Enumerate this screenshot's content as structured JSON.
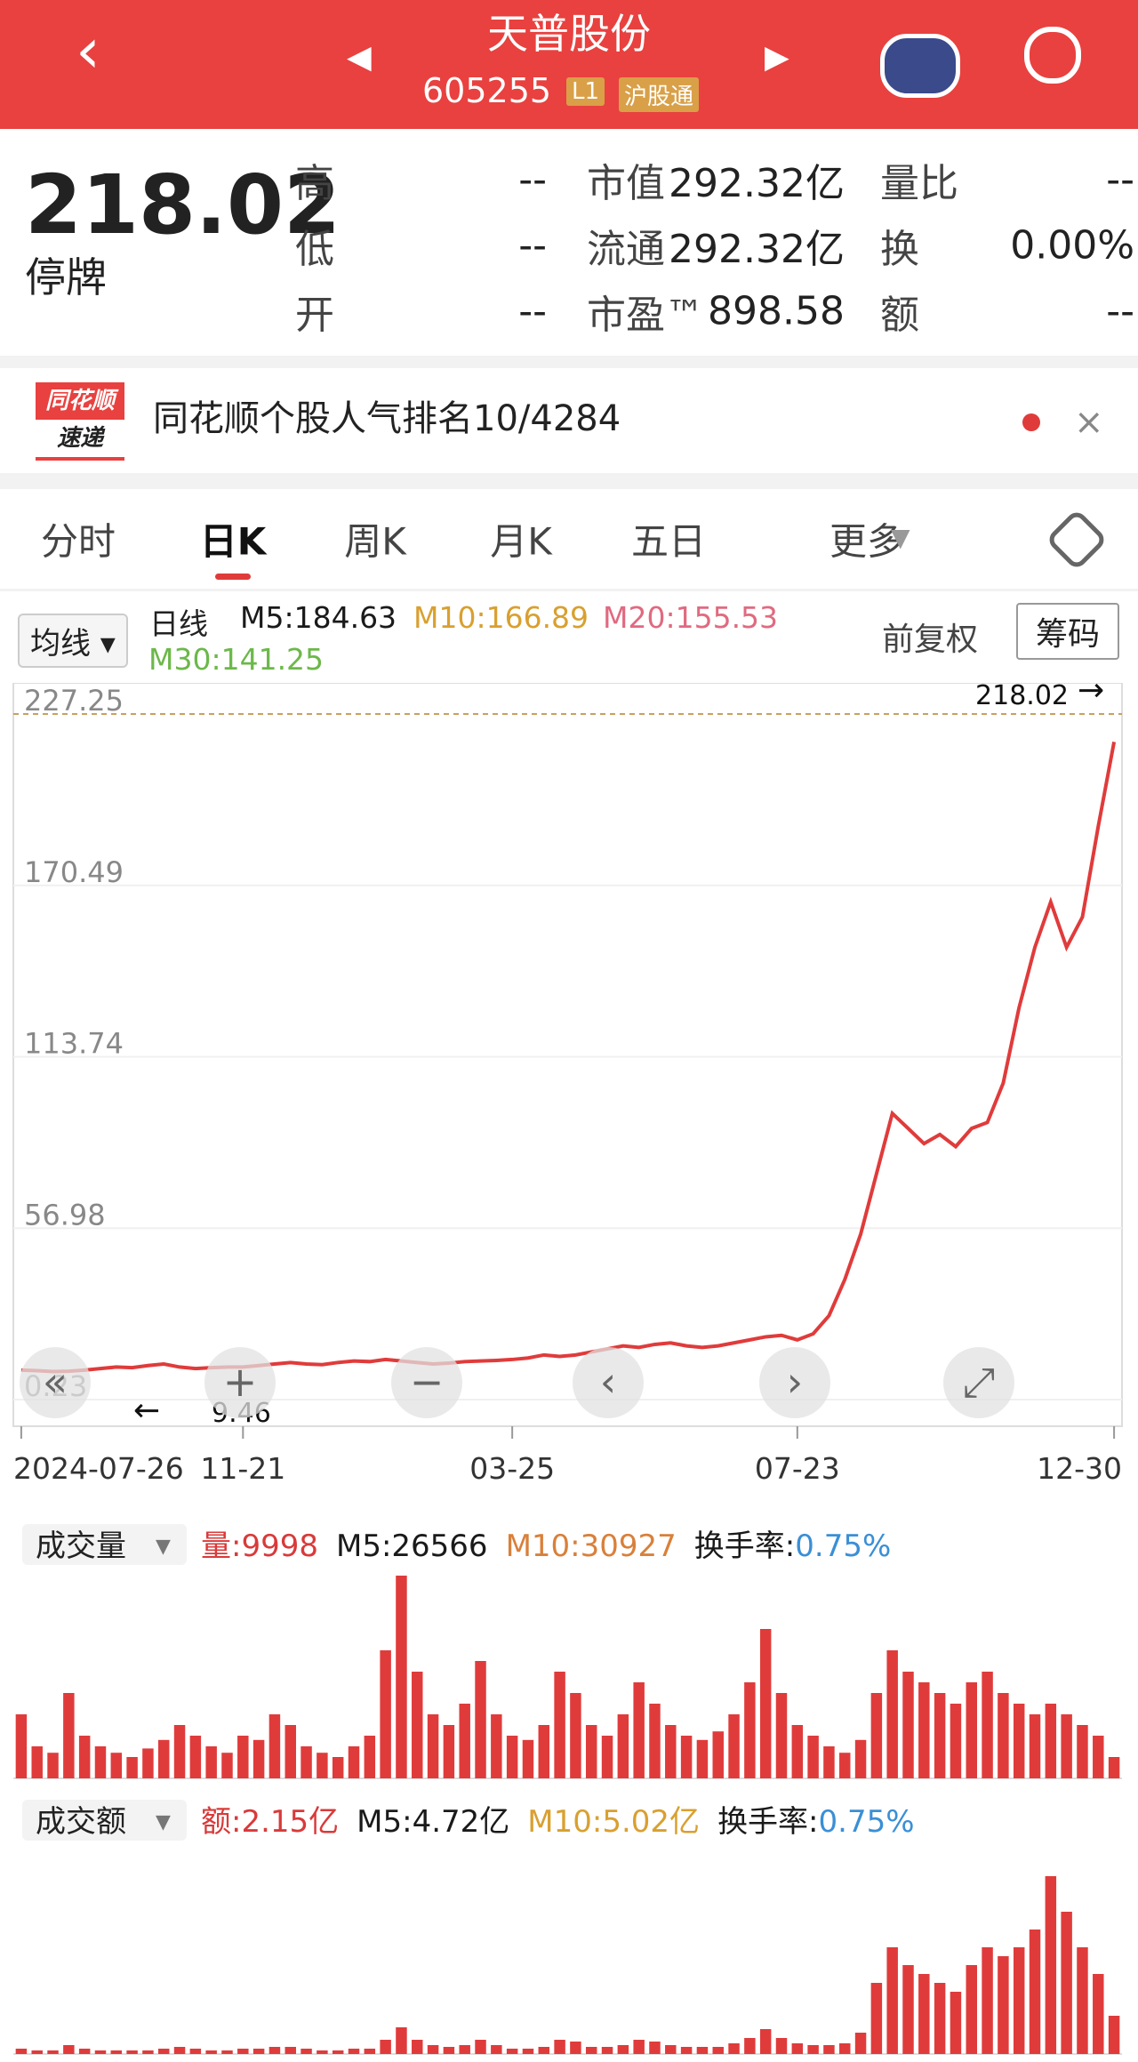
{
  "header": {
    "title": "天普股份",
    "code": "605255",
    "badge_level": "L1",
    "badge_connect": "沪股通"
  },
  "quote": {
    "price": 218.02,
    "status": "停牌",
    "rows": [
      [
        {
          "label": "高",
          "value": "--"
        },
        {
          "label": "市值",
          "value": "292.32亿"
        },
        {
          "label": "量比",
          "value": "--"
        }
      ],
      [
        {
          "label": "低",
          "value": "--"
        },
        {
          "label": "流通",
          "value": "292.32亿"
        },
        {
          "label": "换",
          "value": "0.00%"
        }
      ],
      [
        {
          "label": "开",
          "value": "--"
        },
        {
          "label": "市盈™",
          "value": "898.58"
        },
        {
          "label": "额",
          "value": "--"
        }
      ]
    ]
  },
  "banner": {
    "logo_top": "同花顺",
    "logo_bottom": "速递",
    "text": "同花顺个股人气排名10/4284"
  },
  "tabs": {
    "items": [
      "分时",
      "日K",
      "周K",
      "月K",
      "五日",
      "更多"
    ],
    "selected": 1
  },
  "ma_bar": {
    "button": "均线",
    "period": "日线",
    "items": [
      {
        "text": "M5:184.63",
        "color": "#1a1a1a"
      },
      {
        "text": "M10:166.89",
        "color": "#d9a030"
      },
      {
        "text": "M20:155.53",
        "color": "#e06a80"
      },
      {
        "text": "M30:141.25",
        "color": "#6cb84a"
      }
    ],
    "adjust": "前复权",
    "chips": "筹码"
  },
  "chart_data": [
    {
      "type": "line",
      "color": "#e03b3b",
      "categories": [
        "2024-07-26",
        null,
        null,
        null,
        null,
        null,
        null,
        null,
        null,
        null,
        null,
        null,
        null,
        null,
        "11-21",
        null,
        null,
        null,
        null,
        null,
        null,
        null,
        null,
        null,
        null,
        null,
        null,
        null,
        null,
        null,
        null,
        "03-25",
        null,
        null,
        null,
        null,
        null,
        null,
        null,
        null,
        null,
        null,
        null,
        null,
        null,
        null,
        null,
        null,
        null,
        "07-23",
        null,
        null,
        null,
        null,
        null,
        null,
        null,
        null,
        null,
        null,
        null,
        null,
        null,
        null,
        null,
        null,
        null,
        null,
        null,
        "12-30"
      ],
      "values": [
        10,
        9.8,
        9.5,
        9.6,
        10,
        10.5,
        11,
        10.8,
        11.5,
        12,
        11,
        10.5,
        10.8,
        11,
        11,
        11.5,
        12,
        12.5,
        12,
        11.8,
        12.5,
        13,
        12.8,
        13.5,
        13,
        12.5,
        12,
        12.3,
        12.8,
        13,
        13.2,
        13.5,
        14,
        15,
        14.5,
        15,
        16,
        17,
        18,
        17.5,
        18.5,
        19,
        18,
        17.5,
        18,
        19,
        20,
        21,
        21.5,
        20,
        22,
        28,
        40,
        55,
        75,
        95,
        90,
        85,
        88,
        84,
        90,
        92,
        105,
        130,
        150,
        165,
        150,
        160,
        190,
        218.02
      ],
      "ylim": [
        0.23,
        227.25
      ],
      "yticks": [
        0.23,
        56.98,
        113.74,
        170.49,
        227.25
      ],
      "high_label": 218.02,
      "low_label": 9.46
    },
    {
      "type": "bar",
      "title": "成交量",
      "color": "#e03b3b",
      "legend": [
        {
          "text": "量:9998",
          "color": "#d93a3a"
        },
        {
          "text": "M5:26566",
          "color": "#1a1a1a"
        },
        {
          "text": "M10:30927",
          "color": "#d9803a"
        },
        {
          "text": "换手率:",
          "color": "#1a1a1a"
        },
        {
          "text": "0.75%",
          "color": "#3a8fd6"
        }
      ],
      "values": [
        30000,
        15000,
        12000,
        40000,
        20000,
        15000,
        12000,
        10000,
        14000,
        18000,
        25000,
        20000,
        15000,
        12000,
        20000,
        18000,
        30000,
        25000,
        15000,
        12000,
        10000,
        15000,
        20000,
        60000,
        95000,
        50000,
        30000,
        25000,
        35000,
        55000,
        30000,
        20000,
        18000,
        25000,
        50000,
        40000,
        25000,
        20000,
        30000,
        45000,
        35000,
        25000,
        20000,
        18000,
        22000,
        30000,
        45000,
        70000,
        40000,
        25000,
        20000,
        15000,
        12000,
        18000,
        40000,
        60000,
        50000,
        45000,
        40000,
        35000,
        45000,
        50000,
        40000,
        35000,
        30000,
        35000,
        30000,
        25000,
        20000,
        9998
      ],
      "ylim": [
        0,
        100000
      ]
    },
    {
      "type": "bar",
      "title": "成交额",
      "color": "#e03b3b",
      "legend": [
        {
          "text": "额:2.15亿",
          "color": "#d93a3a"
        },
        {
          "text": "M5:4.72亿",
          "color": "#1a1a1a"
        },
        {
          "text": "M10:5.02亿",
          "color": "#d9a030"
        },
        {
          "text": "换手率:",
          "color": "#1a1a1a"
        },
        {
          "text": "0.75%",
          "color": "#3a8fd6"
        }
      ],
      "values": [
        0.3,
        0.2,
        0.2,
        0.5,
        0.3,
        0.2,
        0.2,
        0.2,
        0.2,
        0.3,
        0.4,
        0.3,
        0.2,
        0.2,
        0.3,
        0.3,
        0.4,
        0.4,
        0.3,
        0.2,
        0.2,
        0.3,
        0.3,
        0.8,
        1.5,
        0.8,
        0.5,
        0.4,
        0.5,
        0.8,
        0.5,
        0.3,
        0.3,
        0.4,
        0.8,
        0.7,
        0.4,
        0.4,
        0.5,
        0.8,
        0.7,
        0.5,
        0.4,
        0.4,
        0.4,
        0.6,
        0.9,
        1.4,
        0.9,
        0.6,
        0.5,
        0.5,
        0.6,
        1.2,
        4,
        6,
        5,
        4.5,
        4,
        3.5,
        5,
        6,
        5.5,
        6,
        7,
        10,
        8,
        6,
        4.5,
        2.15
      ],
      "ylim": [
        0,
        12
      ]
    }
  ]
}
